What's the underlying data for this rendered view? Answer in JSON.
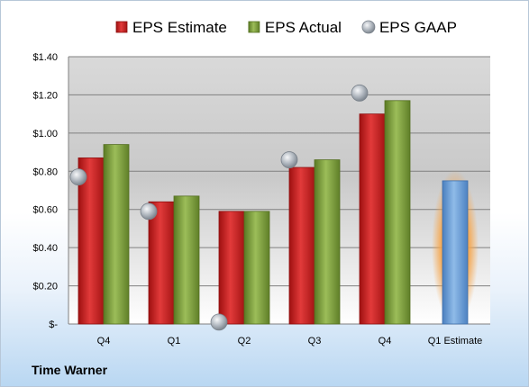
{
  "chart_data": {
    "type": "bar",
    "categories": [
      "Q4",
      "Q1",
      "Q2",
      "Q3",
      "Q4",
      "Q1 Estimate"
    ],
    "series": [
      {
        "name": "EPS Estimate",
        "values": [
          0.87,
          0.64,
          0.59,
          0.82,
          1.1,
          null
        ],
        "color": "#cc1f1f",
        "kind": "bar"
      },
      {
        "name": "EPS Actual",
        "values": [
          0.94,
          0.67,
          0.59,
          0.86,
          1.17,
          null
        ],
        "color": "#7a9a3a",
        "kind": "bar"
      },
      {
        "name": "EPS GAAP",
        "values": [
          0.77,
          0.59,
          0.01,
          0.86,
          1.21,
          null
        ],
        "color": "#9aa3ad",
        "kind": "marker"
      },
      {
        "name": "Q1 Estimate",
        "values": [
          null,
          null,
          null,
          null,
          null,
          0.75
        ],
        "color": "#6a9fd8",
        "kind": "bar"
      }
    ],
    "ylim": [
      0,
      1.4
    ],
    "yticks": [
      {
        "value": 0,
        "label": "$-"
      },
      {
        "value": 0.2,
        "label": "$0.20"
      },
      {
        "value": 0.4,
        "label": "$0.40"
      },
      {
        "value": 0.6,
        "label": "$0.60"
      },
      {
        "value": 0.8,
        "label": "$0.80"
      },
      {
        "value": 1.0,
        "label": "$1.00"
      },
      {
        "value": 1.2,
        "label": "$1.20"
      },
      {
        "value": 1.4,
        "label": "$1.40"
      }
    ],
    "legend_position": "top",
    "grid": true
  },
  "company": "Time Warner"
}
